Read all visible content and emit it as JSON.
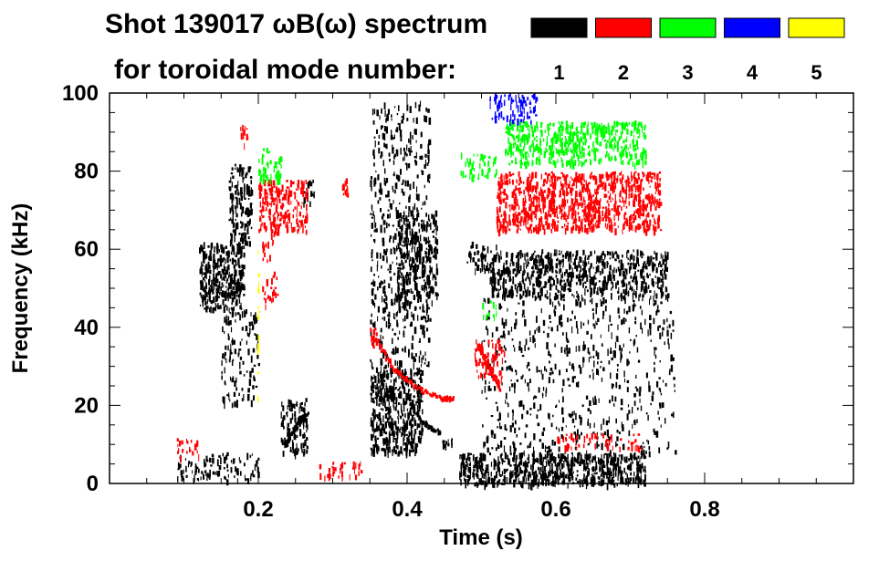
{
  "chart_data": {
    "type": "heatmap",
    "title": "Shot 139017 ωB(ω) spectrum",
    "subtitle": "for toroidal mode number:",
    "xlabel": "Time (s)",
    "ylabel": "Frequency (kHz)",
    "xlim": [
      0.0,
      1.0
    ],
    "ylim": [
      0,
      100
    ],
    "xticks": [
      {
        "value": 0.2,
        "label": "0.2"
      },
      {
        "value": 0.4,
        "label": "0.4"
      },
      {
        "value": 0.6,
        "label": "0.6"
      },
      {
        "value": 0.8,
        "label": "0.8"
      }
    ],
    "yticks": [
      {
        "value": 0,
        "label": "0"
      },
      {
        "value": 20,
        "label": "20"
      },
      {
        "value": 40,
        "label": "40"
      },
      {
        "value": 60,
        "label": "60"
      },
      {
        "value": 80,
        "label": "80"
      },
      {
        "value": 100,
        "label": "100"
      }
    ],
    "legend": {
      "placement": "top-right",
      "entries": [
        {
          "label": "1",
          "color": "#000000"
        },
        {
          "label": "2",
          "color": "#ff0000"
        },
        {
          "label": "3",
          "color": "#00ff00"
        },
        {
          "label": "4",
          "color": "#0000ff"
        },
        {
          "label": "5",
          "color": "#ffff00"
        }
      ]
    },
    "regions": [
      {
        "mode": 1,
        "t": [
          0.12,
          0.18
        ],
        "f": [
          45,
          62
        ],
        "density": 0.85
      },
      {
        "mode": 1,
        "t": [
          0.16,
          0.19
        ],
        "f": [
          62,
          82
        ],
        "density": 0.6
      },
      {
        "mode": 1,
        "t": [
          0.09,
          0.2
        ],
        "f": [
          1,
          8
        ],
        "density": 0.35
      },
      {
        "mode": 1,
        "t": [
          0.15,
          0.2
        ],
        "f": [
          20,
          45
        ],
        "density": 0.25
      },
      {
        "mode": 1,
        "t": [
          0.23,
          0.265
        ],
        "f": [
          8,
          22
        ],
        "density": 0.55
      },
      {
        "mode": 1,
        "t": [
          0.26,
          0.275
        ],
        "f": [
          72,
          78
        ],
        "density": 0.55
      },
      {
        "mode": 1,
        "t": [
          0.35,
          0.42
        ],
        "f": [
          8,
          30
        ],
        "density": 0.85
      },
      {
        "mode": 1,
        "t": [
          0.35,
          0.43
        ],
        "f": [
          30,
          98
        ],
        "density": 0.25
      },
      {
        "mode": 1,
        "t": [
          0.385,
          0.44
        ],
        "f": [
          45,
          70
        ],
        "density": 0.55
      },
      {
        "mode": 1,
        "t": [
          0.44,
          0.46
        ],
        "f": [
          10,
          12
        ],
        "density": 0.8
      },
      {
        "mode": 1,
        "t": [
          0.47,
          0.72
        ],
        "f": [
          0,
          8
        ],
        "density": 0.9
      },
      {
        "mode": 1,
        "t": [
          0.51,
          0.75
        ],
        "f": [
          48,
          60
        ],
        "density": 0.65
      },
      {
        "mode": 1,
        "t": [
          0.5,
          0.76
        ],
        "f": [
          8,
          48
        ],
        "density": 0.15
      },
      {
        "mode": 1,
        "t": [
          0.48,
          0.52
        ],
        "f": [
          55,
          62
        ],
        "density": 0.5
      },
      {
        "mode": 2,
        "t": [
          0.2,
          0.265
        ],
        "f": [
          65,
          78
        ],
        "density": 0.65
      },
      {
        "mode": 2,
        "t": [
          0.205,
          0.225
        ],
        "f": [
          45,
          65
        ],
        "density": 0.25
      },
      {
        "mode": 2,
        "t": [
          0.175,
          0.185
        ],
        "f": [
          87,
          92
        ],
        "density": 0.6
      },
      {
        "mode": 2,
        "t": [
          0.31,
          0.32
        ],
        "f": [
          74,
          79
        ],
        "density": 0.65
      },
      {
        "mode": 2,
        "t": [
          0.52,
          0.74
        ],
        "f": [
          65,
          80
        ],
        "density": 0.75
      },
      {
        "mode": 2,
        "t": [
          0.35,
          0.36
        ],
        "f": [
          35,
          40
        ],
        "density": 0.6
      },
      {
        "mode": 2,
        "t": [
          0.49,
          0.53
        ],
        "f": [
          27,
          37
        ],
        "density": 0.45
      },
      {
        "mode": 2,
        "t": [
          0.28,
          0.34
        ],
        "f": [
          2,
          6
        ],
        "density": 0.35
      },
      {
        "mode": 2,
        "t": [
          0.09,
          0.12
        ],
        "f": [
          7,
          12
        ],
        "density": 0.35
      },
      {
        "mode": 2,
        "t": [
          0.6,
          0.72
        ],
        "f": [
          9,
          13
        ],
        "density": 0.3
      },
      {
        "mode": 3,
        "t": [
          0.2,
          0.23
        ],
        "f": [
          78,
          86
        ],
        "density": 0.55
      },
      {
        "mode": 3,
        "t": [
          0.53,
          0.72
        ],
        "f": [
          82,
          93
        ],
        "density": 0.65
      },
      {
        "mode": 3,
        "t": [
          0.47,
          0.52
        ],
        "f": [
          78,
          85
        ],
        "density": 0.35
      },
      {
        "mode": 3,
        "t": [
          0.5,
          0.52
        ],
        "f": [
          43,
          47
        ],
        "density": 0.35
      },
      {
        "mode": 4,
        "t": [
          0.51,
          0.575
        ],
        "f": [
          93,
          100
        ],
        "density": 0.45
      },
      {
        "mode": 5,
        "t": [
          0.198,
          0.2
        ],
        "f": [
          20,
          60
        ],
        "density": 0.5
      }
    ],
    "tracks": [
      {
        "mode": 1,
        "points": [
          [
            0.4,
            22
          ],
          [
            0.42,
            16
          ],
          [
            0.445,
            13
          ]
        ]
      },
      {
        "mode": 2,
        "points": [
          [
            0.355,
            38
          ],
          [
            0.38,
            30
          ],
          [
            0.41,
            25
          ],
          [
            0.445,
            22
          ],
          [
            0.46,
            22
          ]
        ]
      },
      {
        "mode": 2,
        "points": [
          [
            0.495,
            36
          ],
          [
            0.51,
            30
          ],
          [
            0.525,
            24
          ]
        ]
      },
      {
        "mode": 1,
        "points": [
          [
            0.235,
            10
          ],
          [
            0.25,
            15
          ],
          [
            0.265,
            18
          ]
        ]
      }
    ]
  }
}
